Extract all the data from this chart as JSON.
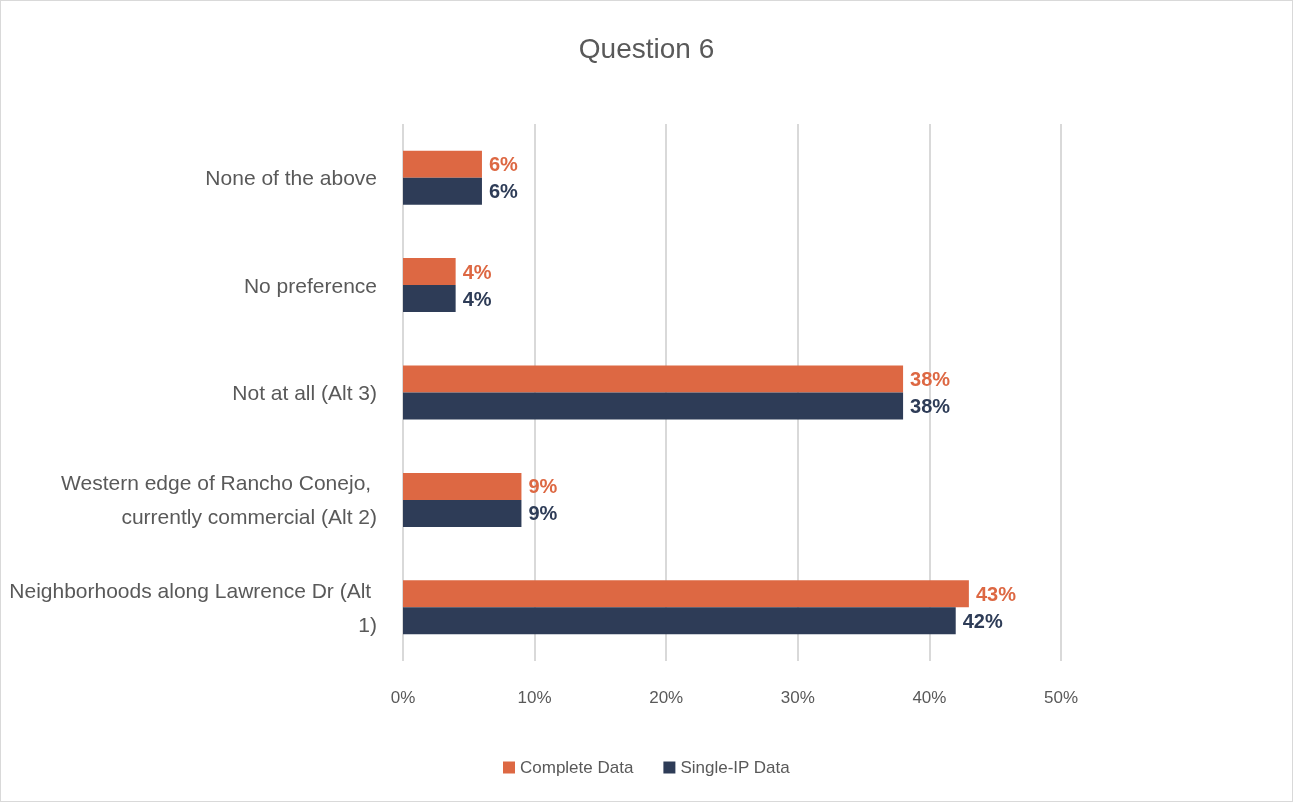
{
  "chart_data": {
    "type": "bar",
    "orientation": "horizontal",
    "title": "Question 6",
    "categories": [
      "None of the above",
      "No preference",
      "Not at all (Alt 3)",
      "Western edge of Rancho Conejo, currently commercial (Alt 2)",
      "Neighborhoods along Lawrence Dr (Alt 1)"
    ],
    "series": [
      {
        "name": "Complete Data",
        "color": "#dd6843",
        "values": [
          6,
          4,
          38,
          9,
          43
        ],
        "value_labels": [
          "6%",
          "4%",
          "38%",
          "9%",
          "43%"
        ]
      },
      {
        "name": "Single-IP Data",
        "color": "#2e3c57",
        "values": [
          6,
          4,
          38,
          9,
          42
        ],
        "value_labels": [
          "6%",
          "4%",
          "38%",
          "9%",
          "42%"
        ]
      }
    ],
    "xlim": [
      0,
      50
    ],
    "xticks": [
      {
        "value": 0,
        "label": "0%"
      },
      {
        "value": 10,
        "label": "10%"
      },
      {
        "value": 20,
        "label": "20%"
      },
      {
        "value": 30,
        "label": "30%"
      },
      {
        "value": 40,
        "label": "40%"
      },
      {
        "value": 50,
        "label": "50%"
      }
    ],
    "grid": "x",
    "legend": "bottom"
  }
}
